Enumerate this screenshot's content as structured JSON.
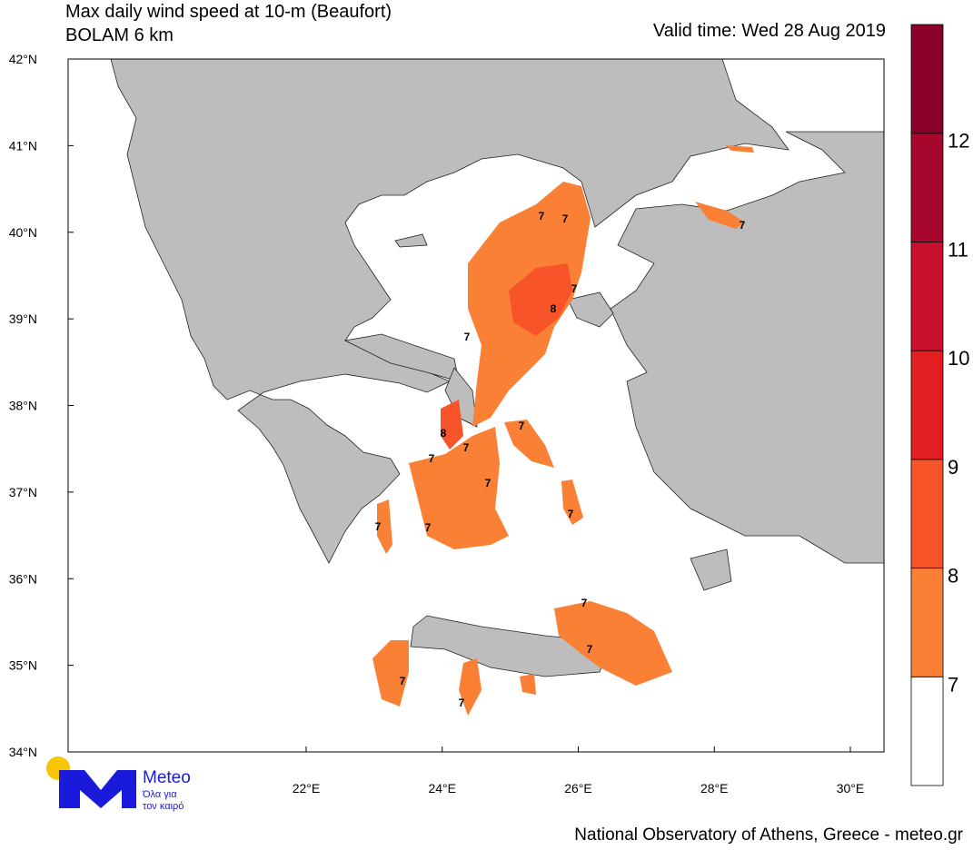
{
  "header": {
    "title": "Max daily wind speed at 10-m (Beaufort)",
    "subtitle": "BOLAM 6 km",
    "valid_time": "Valid time: Wed 28 Aug 2019"
  },
  "map": {
    "lat_ticks": [
      {
        "value": 42,
        "label": "42°N"
      },
      {
        "value": 41,
        "label": "41°N"
      },
      {
        "value": 40,
        "label": "40°N"
      },
      {
        "value": 39,
        "label": "39°N"
      },
      {
        "value": 38,
        "label": "38°N"
      },
      {
        "value": 37,
        "label": "37°N"
      },
      {
        "value": 36,
        "label": "36°N"
      },
      {
        "value": 35,
        "label": "35°N"
      },
      {
        "value": 34,
        "label": "34°N"
      }
    ],
    "lon_ticks": [
      {
        "value": 22,
        "label": "22°E"
      },
      {
        "value": 24,
        "label": "24°E"
      },
      {
        "value": 26,
        "label": "26°E"
      },
      {
        "value": 28,
        "label": "28°E"
      },
      {
        "value": 30,
        "label": "30°E"
      }
    ],
    "contour_labels": [
      7,
      7,
      7,
      8,
      7,
      7,
      8,
      7,
      7,
      7,
      7,
      7,
      7,
      7,
      7,
      7,
      7,
      7
    ]
  },
  "colorbar": {
    "levels": [
      7,
      8,
      9,
      10,
      11,
      12
    ],
    "colors": [
      "#ffffff",
      "#f98035",
      "#f8542a",
      "#e31e23",
      "#c8102e",
      "#a8072d",
      "#8b0029"
    ]
  },
  "logo": {
    "name": "Meteo",
    "tagline_1": "Όλα για",
    "tagline_2": "τον καιρό"
  },
  "footer": "National Observatory of Athens, Greece - meteo.gr"
}
